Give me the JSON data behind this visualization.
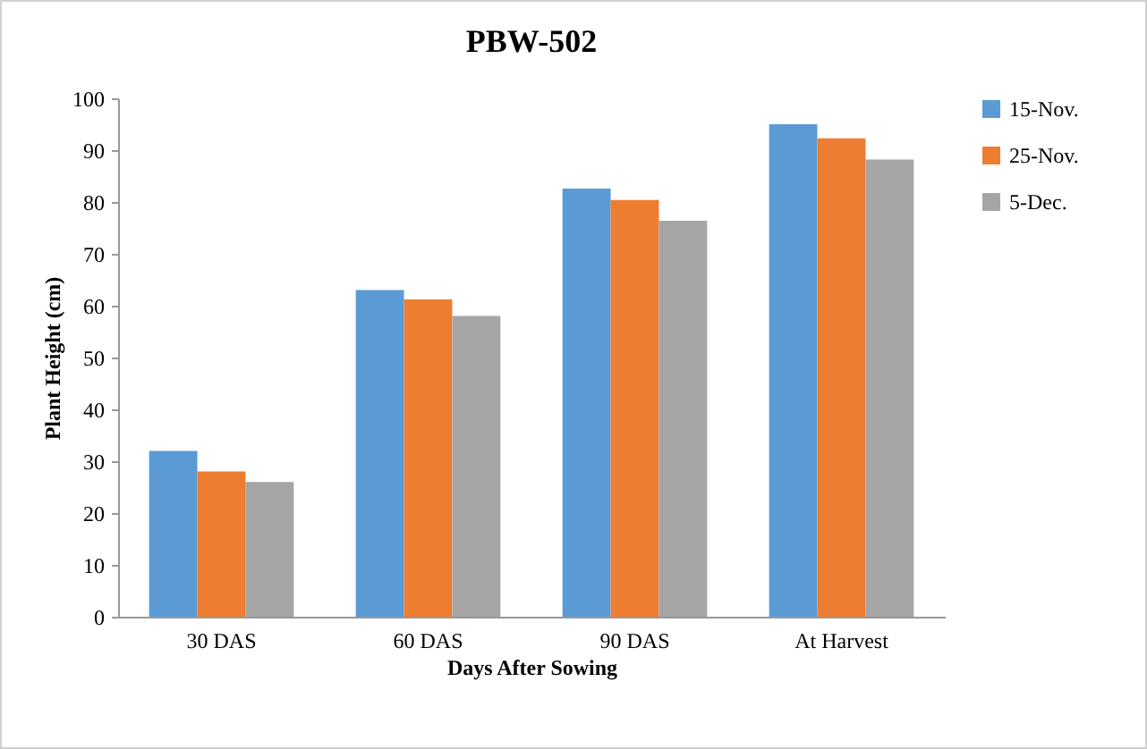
{
  "chart_data": {
    "type": "bar",
    "title": "PBW-502",
    "xlabel": "Days After Sowing",
    "ylabel": "Plant Height (cm)",
    "categories": [
      "30 DAS",
      "60 DAS",
      "90 DAS",
      "At Harvest"
    ],
    "series": [
      {
        "name": "15-Nov.",
        "color": "#5b9bd5",
        "values": [
          32,
          63,
          82.6,
          95
        ]
      },
      {
        "name": "25-Nov.",
        "color": "#ed7d31",
        "values": [
          28,
          61.2,
          80.4,
          92.3
        ]
      },
      {
        "name": "5-Dec.",
        "color": "#a5a5a5",
        "values": [
          26,
          58,
          76.4,
          88.2
        ]
      }
    ],
    "ylim": [
      0,
      100
    ],
    "yticks": [
      0,
      10,
      20,
      30,
      40,
      50,
      60,
      70,
      80,
      90,
      100
    ],
    "grid": false,
    "legend": "top right"
  }
}
